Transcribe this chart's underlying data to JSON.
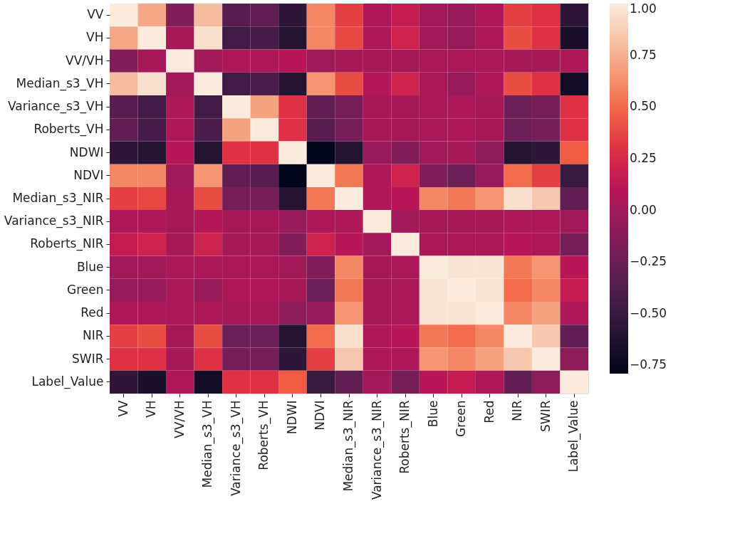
{
  "chart_data": {
    "type": "heatmap",
    "categories": [
      "VV",
      "VH",
      "VV/VH",
      "Median_s3_VH",
      "Variance_s3_VH",
      "Roberts_VH",
      "NDWI",
      "NDVI",
      "Median_s3_NIR",
      "Variance_s3_NIR",
      "Roberts_NIR",
      "Blue",
      "Green",
      "Red",
      "NIR",
      "SWIR",
      "Label_Value"
    ],
    "y_categories": [
      "VV",
      "VH",
      "VV/VH",
      "Median_s3_VH",
      "Variance_s3_VH",
      "Roberts_VH",
      "NDWI",
      "NDVI",
      "Median_s3_NIR",
      "Variance_s3_NIR",
      "Roberts_NIR",
      "Blue",
      "Green",
      "Red",
      "NIR",
      "SWIR",
      "Label_Value"
    ],
    "cells": [
      [
        1,
        0.72,
        -0.15,
        0.8,
        -0.35,
        -0.3,
        -0.55,
        0.6,
        0.35,
        0.05,
        0.15,
        0.0,
        -0.05,
        0.05,
        0.35,
        0.3,
        -0.55
      ],
      [
        0.72,
        1,
        0.02,
        0.95,
        -0.45,
        -0.42,
        -0.6,
        0.6,
        0.38,
        0.05,
        0.2,
        0.0,
        -0.05,
        0.05,
        0.4,
        0.3,
        -0.65
      ],
      [
        -0.15,
        0.02,
        1,
        0.0,
        0.05,
        0.05,
        0.1,
        -0.02,
        0.02,
        0.02,
        0.02,
        0.03,
        0.03,
        0.03,
        0.02,
        0.02,
        0.05
      ],
      [
        0.8,
        0.95,
        0.0,
        1,
        -0.45,
        -0.4,
        -0.6,
        0.65,
        0.4,
        0.08,
        0.2,
        0.03,
        -0.05,
        0.05,
        0.4,
        0.3,
        -0.7
      ],
      [
        -0.35,
        -0.45,
        0.05,
        -0.45,
        1,
        0.7,
        0.3,
        -0.3,
        -0.2,
        0.02,
        0.02,
        0.03,
        0.05,
        0.02,
        -0.25,
        -0.2,
        0.3
      ],
      [
        -0.3,
        -0.42,
        0.05,
        -0.4,
        0.7,
        1,
        0.3,
        -0.35,
        -0.2,
        0.02,
        0.02,
        0.03,
        0.05,
        0.02,
        -0.25,
        -0.2,
        0.3
      ],
      [
        -0.55,
        -0.6,
        0.1,
        -0.6,
        0.3,
        0.3,
        1,
        -0.79,
        -0.6,
        -0.05,
        -0.15,
        0.0,
        0.02,
        -0.1,
        -0.6,
        -0.55,
        0.45
      ],
      [
        0.6,
        0.6,
        -0.02,
        0.65,
        -0.3,
        -0.35,
        -0.79,
        1,
        0.55,
        0.05,
        0.2,
        -0.15,
        -0.25,
        -0.05,
        0.5,
        0.35,
        -0.5
      ],
      [
        0.35,
        0.38,
        0.02,
        0.4,
        -0.2,
        -0.2,
        -0.6,
        0.55,
        1,
        0.05,
        0.1,
        0.6,
        0.55,
        0.65,
        0.95,
        0.85,
        -0.3
      ],
      [
        0.05,
        0.05,
        0.02,
        0.08,
        0.02,
        0.02,
        -0.05,
        0.05,
        0.05,
        1,
        0.0,
        0.02,
        0.02,
        0.02,
        0.05,
        0.05,
        0.0
      ],
      [
        0.15,
        0.2,
        0.02,
        0.2,
        0.02,
        0.02,
        -0.15,
        0.2,
        0.1,
        0.0,
        1,
        0.03,
        0.03,
        0.03,
        0.1,
        0.05,
        -0.2
      ],
      [
        0.0,
        0.0,
        0.03,
        0.03,
        0.03,
        0.03,
        0.0,
        -0.15,
        0.6,
        0.02,
        0.03,
        1,
        0.97,
        0.97,
        0.55,
        0.65,
        0.1
      ],
      [
        -0.05,
        -0.05,
        0.03,
        -0.05,
        0.05,
        0.05,
        0.02,
        -0.25,
        0.55,
        0.02,
        0.03,
        0.97,
        1,
        0.97,
        0.5,
        0.6,
        0.15
      ],
      [
        0.05,
        0.05,
        0.03,
        0.05,
        0.02,
        0.02,
        -0.1,
        -0.05,
        0.65,
        0.02,
        0.03,
        0.97,
        0.97,
        1,
        0.6,
        0.7,
        0.05
      ],
      [
        0.35,
        0.4,
        0.02,
        0.4,
        -0.25,
        -0.25,
        -0.6,
        0.5,
        0.95,
        0.05,
        0.1,
        0.55,
        0.5,
        0.6,
        1,
        0.85,
        -0.3
      ],
      [
        0.3,
        0.3,
        0.02,
        0.3,
        -0.2,
        -0.2,
        -0.55,
        0.35,
        0.85,
        0.05,
        0.05,
        0.65,
        0.6,
        0.7,
        0.85,
        1,
        -0.1
      ],
      [
        -0.55,
        -0.65,
        0.05,
        -0.7,
        0.3,
        0.3,
        0.45,
        -0.5,
        -0.3,
        0.0,
        -0.2,
        0.1,
        0.15,
        0.05,
        -0.3,
        -0.1,
        1
      ]
    ],
    "clim": [
      -0.79,
      1
    ],
    "cticks": [
      {
        "value": -0.75,
        "label": "−0.75"
      },
      {
        "value": -0.5,
        "label": "−0.50"
      },
      {
        "value": -0.25,
        "label": "−0.25"
      },
      {
        "value": 0,
        "label": "0.00"
      },
      {
        "value": 0.25,
        "label": "0.25"
      },
      {
        "value": 0.5,
        "label": "0.50"
      },
      {
        "value": 0.75,
        "label": "0.75"
      },
      {
        "value": 1,
        "label": "1.00"
      }
    ]
  }
}
